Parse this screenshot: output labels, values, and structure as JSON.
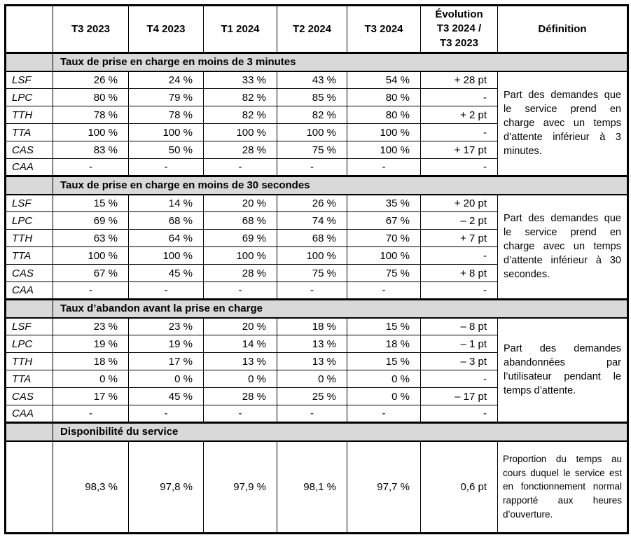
{
  "table": {
    "columns": [
      "T3 2023",
      "T4 2023",
      "T1 2024",
      "T2 2024",
      "T3 2024",
      "Évolution\nT3 2024 /\nT3 2023",
      "Définition"
    ],
    "sections": [
      {
        "title": "Taux de prise en charge en moins de 3 minutes",
        "definition": "Part des demandes que le service prend en charge avec un temps d’attente inférieur à 3 minutes.",
        "rows": [
          {
            "label": "LSF",
            "values": [
              "26 %",
              "24 %",
              "33 %",
              "43 %",
              "54 %",
              "+ 28 pt"
            ]
          },
          {
            "label": "LPC",
            "values": [
              "80 %",
              "79 %",
              "82 %",
              "85 %",
              "80 %",
              "-"
            ]
          },
          {
            "label": "TTH",
            "values": [
              "78 %",
              "78 %",
              "82 %",
              "82 %",
              "80 %",
              "+ 2 pt"
            ]
          },
          {
            "label": "TTA",
            "values": [
              "100 %",
              "100 %",
              "100 %",
              "100 %",
              "100 %",
              "-"
            ]
          },
          {
            "label": "CAS",
            "values": [
              "83 %",
              "50 %",
              "28 %",
              "75 %",
              "100 %",
              "+ 17 pt"
            ]
          },
          {
            "label": "CAA",
            "values": [
              "-",
              "-",
              "-",
              "-",
              "-",
              "-"
            ]
          }
        ]
      },
      {
        "title": "Taux de prise en charge en moins de 30 secondes",
        "definition": "Part des demandes que le service prend en charge avec un temps d’attente inférieur à 30 secondes.",
        "rows": [
          {
            "label": "LSF",
            "values": [
              "15 %",
              "14 %",
              "20 %",
              "26 %",
              "35 %",
              "+ 20 pt"
            ]
          },
          {
            "label": "LPC",
            "values": [
              "69 %",
              "68 %",
              "68 %",
              "74 %",
              "67 %",
              "– 2 pt"
            ]
          },
          {
            "label": "TTH",
            "values": [
              "63 %",
              "64 %",
              "69 %",
              "68 %",
              "70 %",
              "+ 7 pt"
            ]
          },
          {
            "label": "TTA",
            "values": [
              "100 %",
              "100 %",
              "100 %",
              "100 %",
              "100 %",
              "-"
            ]
          },
          {
            "label": "CAS",
            "values": [
              "67 %",
              "45 %",
              "28 %",
              "75 %",
              "75 %",
              "+ 8 pt"
            ]
          },
          {
            "label": "CAA",
            "values": [
              "-",
              "-",
              "-",
              "-",
              "-",
              "-"
            ]
          }
        ]
      },
      {
        "title": "Taux d’abandon avant la prise en charge",
        "definition": "Part des demandes abandonnées par l’utilisateur pendant le temps d’attente.",
        "rows": [
          {
            "label": "LSF",
            "values": [
              "23 %",
              "23 %",
              "20 %",
              "18 %",
              "15 %",
              "– 8 pt"
            ]
          },
          {
            "label": "LPC",
            "values": [
              "19 %",
              "19 %",
              "14 %",
              "13 %",
              "18 %",
              "– 1 pt"
            ]
          },
          {
            "label": "TTH",
            "values": [
              "18 %",
              "17 %",
              "13 %",
              "13 %",
              "15 %",
              "– 3 pt"
            ]
          },
          {
            "label": "TTA",
            "values": [
              "0 %",
              "0 %",
              "0 %",
              "0 %",
              "0 %",
              "-"
            ]
          },
          {
            "label": "CAS",
            "values": [
              "17 %",
              "45 %",
              "28 %",
              "25 %",
              "0 %",
              "– 17 pt"
            ]
          },
          {
            "label": "CAA",
            "values": [
              "-",
              "-",
              "-",
              "-",
              "-",
              "-"
            ]
          }
        ]
      },
      {
        "title": "Disponibilité du service",
        "definition": "Proportion du temps au cours duquel le service est en fonctionnement normal rapporté aux heures d’ouverture.",
        "tall": true,
        "rows": [
          {
            "label": "",
            "values": [
              "98,3 %",
              "97,8 %",
              "97,9 %",
              "98,1 %",
              "97,7 %",
              "0,6 pt"
            ]
          }
        ]
      }
    ]
  }
}
